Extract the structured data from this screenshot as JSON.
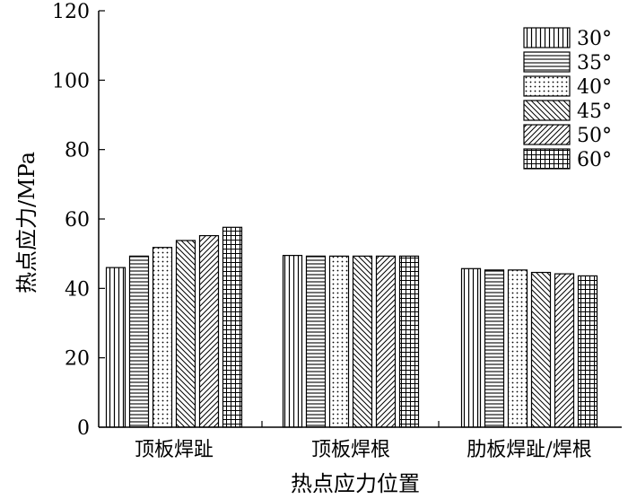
{
  "chart_data": {
    "type": "bar",
    "title": "",
    "xlabel": "热点应力位置",
    "ylabel": "热点应力/MPa",
    "ylim": [
      0,
      120
    ],
    "yticks": [
      0,
      20,
      40,
      60,
      80,
      100,
      120
    ],
    "grid": false,
    "legend_position": "top-right",
    "categories": [
      "顶板焊趾",
      "顶板焊根",
      "肋板焊趾/焊根"
    ],
    "series": [
      {
        "name": "30°",
        "pattern": "vertical",
        "values": [
          46,
          49.5,
          45.7
        ]
      },
      {
        "name": "35°",
        "pattern": "horizontal",
        "values": [
          49.3,
          49.3,
          45.3
        ]
      },
      {
        "name": "40°",
        "pattern": "dots",
        "values": [
          51.8,
          49.3,
          45.3
        ]
      },
      {
        "name": "45°",
        "pattern": "diag-back",
        "values": [
          53.8,
          49.3,
          44.6
        ]
      },
      {
        "name": "50°",
        "pattern": "diag-fwd",
        "values": [
          55.2,
          49.3,
          44.2
        ]
      },
      {
        "name": "60°",
        "pattern": "grid",
        "values": [
          57.6,
          49.3,
          43.6
        ]
      }
    ]
  }
}
